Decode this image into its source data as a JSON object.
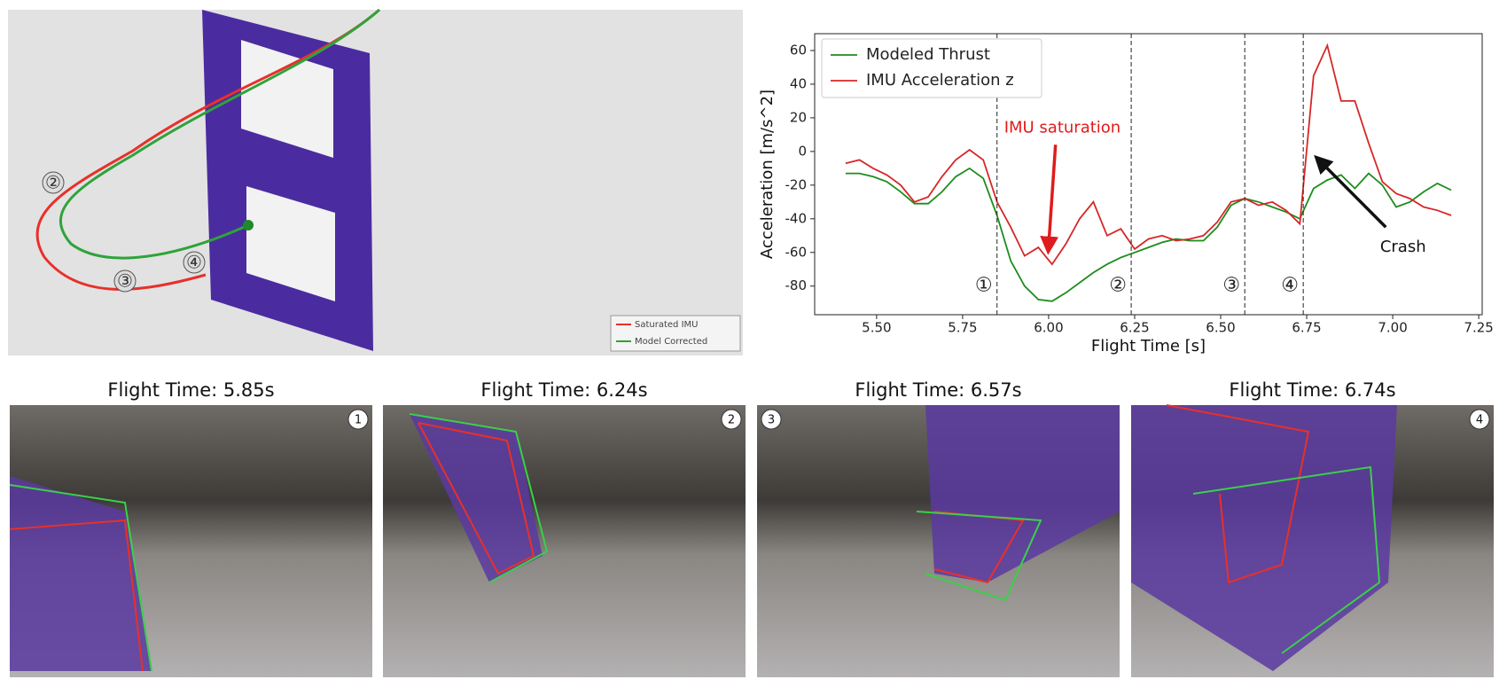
{
  "trajectory": {
    "markers": [
      "②",
      "③",
      "④"
    ],
    "legend": [
      {
        "name": "Saturated IMU",
        "color": "#e8302a"
      },
      {
        "name": "Model Corrected",
        "color": "#2fa33a"
      }
    ]
  },
  "chart_data": {
    "type": "line",
    "xlabel": "Flight Time [s]",
    "ylabel": "Acceleration [m/s^2]",
    "x": [
      5.41,
      5.45,
      5.49,
      5.53,
      5.57,
      5.61,
      5.65,
      5.69,
      5.73,
      5.77,
      5.81,
      5.85,
      5.89,
      5.93,
      5.97,
      6.01,
      6.05,
      6.09,
      6.13,
      6.17,
      6.21,
      6.25,
      6.29,
      6.33,
      6.37,
      6.41,
      6.45,
      6.49,
      6.53,
      6.57,
      6.61,
      6.65,
      6.69,
      6.73,
      6.77,
      6.81,
      6.85,
      6.89,
      6.93,
      6.97,
      7.01,
      7.05,
      7.09,
      7.13,
      7.17
    ],
    "series": [
      {
        "name": "Modeled Thrust",
        "color": "#1e8c1e",
        "values": [
          -13,
          -13,
          -15,
          -18,
          -24,
          -31,
          -31,
          -24,
          -15,
          -10,
          -16,
          -38,
          -65,
          -80,
          -88,
          -89,
          -84,
          -78,
          -72,
          -67,
          -63,
          -60,
          -57,
          -54,
          -52,
          -53,
          -53,
          -45,
          -32,
          -28,
          -30,
          -33,
          -36,
          -40,
          -22,
          -17,
          -14,
          -22,
          -13,
          -20,
          -33,
          -30,
          -24,
          -19,
          -23
        ]
      },
      {
        "name": "IMU Acceleration z",
        "color": "#d62728",
        "values": [
          -7,
          -5,
          -10,
          -14,
          -20,
          -30,
          -27,
          -15,
          -5,
          1,
          -5,
          -30,
          -45,
          -62,
          -57,
          -67,
          -55,
          -40,
          -30,
          -50,
          -46,
          -58,
          -52,
          -50,
          -53,
          -52,
          -50,
          -42,
          -30,
          -28,
          -32,
          -30,
          -35,
          -43,
          45,
          63,
          30,
          30,
          5,
          -18,
          -25,
          -28,
          -33,
          -35,
          -38
        ]
      }
    ],
    "xlim": [
      5.32,
      7.26
    ],
    "ylim": [
      -97,
      70
    ],
    "xticks": [
      {
        "value": 5.5,
        "label": "5.50"
      },
      5.75,
      {
        "value": 6.0,
        "label": "6.00"
      },
      6.25,
      {
        "value": 6.5,
        "label": "6.50"
      },
      6.75,
      {
        "value": 7.0,
        "label": "7.00"
      },
      7.25
    ],
    "yticks": [
      -80,
      -60,
      -40,
      -20,
      0,
      20,
      40,
      60
    ],
    "legend": "upper left",
    "events": [
      {
        "x": 5.85,
        "label": "①"
      },
      {
        "x": 6.24,
        "label": "②"
      },
      {
        "x": 6.57,
        "label": "③"
      },
      {
        "x": 6.74,
        "label": "④"
      }
    ],
    "annotations": [
      {
        "text": "IMU saturation",
        "color": "#e01b1b"
      },
      {
        "text": "Crash",
        "color": "#111111"
      }
    ]
  },
  "panels": [
    {
      "title": "Flight Time: 5.85s",
      "badge": "1"
    },
    {
      "title": "Flight Time: 6.24s",
      "badge": "2"
    },
    {
      "title": "Flight Time: 6.57s",
      "badge": "3"
    },
    {
      "title": "Flight Time: 6.74s",
      "badge": "4"
    }
  ]
}
